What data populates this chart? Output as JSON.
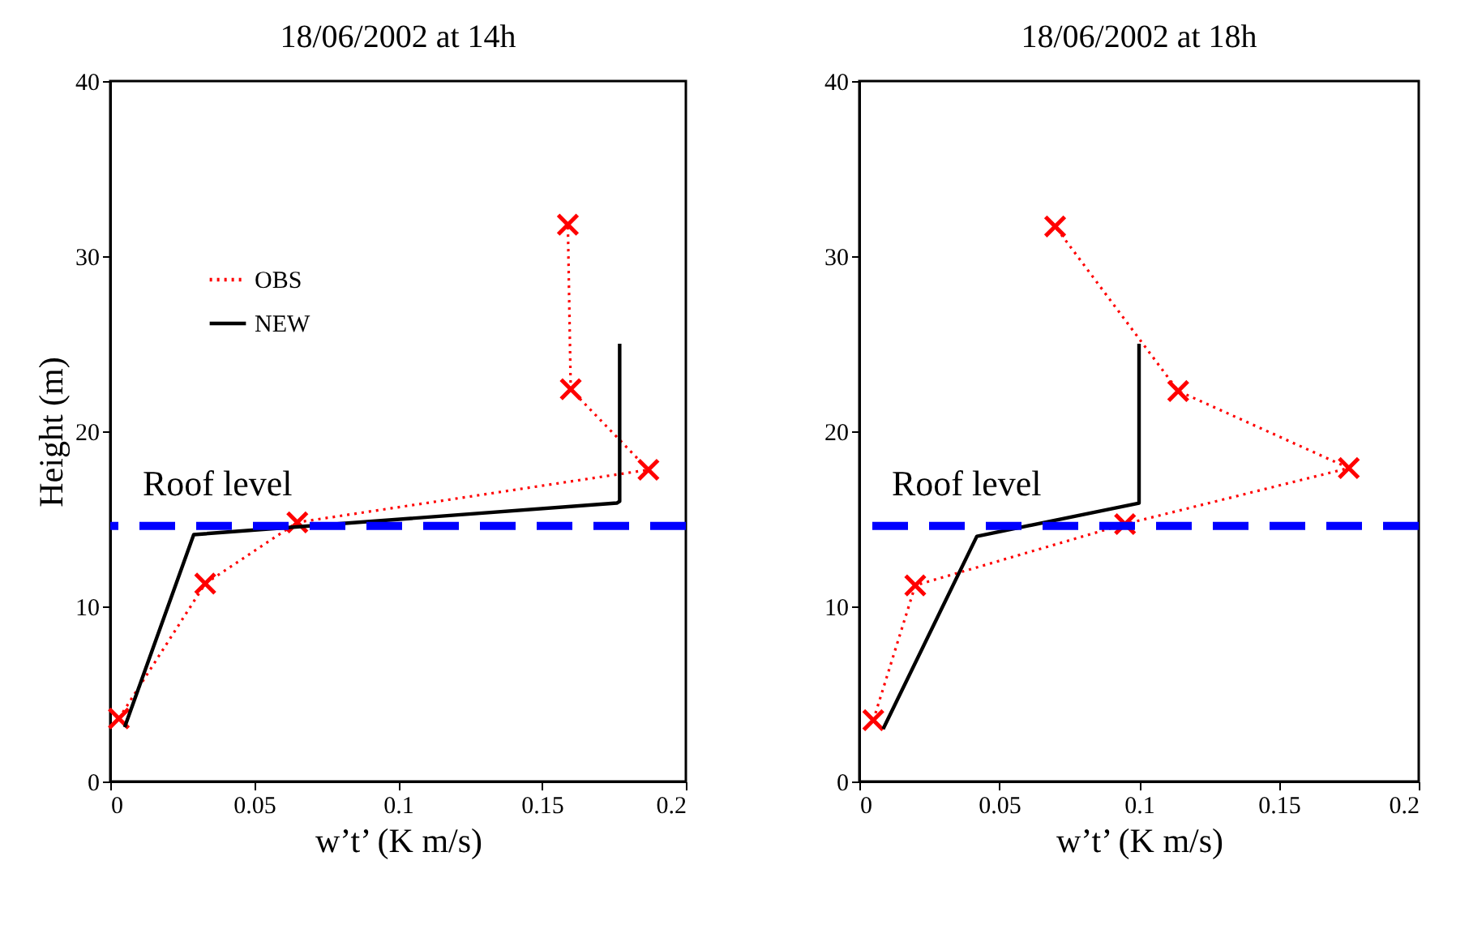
{
  "chart_data": [
    {
      "type": "line",
      "title": "18/06/2002 at 14h",
      "xlabel": "w’t’ (K m/s)",
      "ylabel": "Height (m)",
      "xlim": [
        0,
        0.2
      ],
      "xticks": [
        0,
        0.05,
        0.1,
        0.15,
        0.2
      ],
      "ylim": [
        0,
        40
      ],
      "yticks": [
        0,
        10,
        20,
        30,
        40
      ],
      "grid": false,
      "legend": "top left",
      "series": [
        {
          "name": "OBS",
          "color": "#ff0000",
          "marker": "cross",
          "line_style": "dotted",
          "x": [
            0.003,
            0.033,
            0.065,
            0.187,
            0.16,
            0.159
          ],
          "values": [
            3.6,
            11.3,
            14.8,
            17.8,
            22.4,
            31.8
          ]
        },
        {
          "name": "NEW",
          "color": "#000000",
          "marker": "none",
          "line_style": "solid",
          "x": [
            0.005,
            0.029,
            0.176,
            0.177,
            0.177
          ],
          "values": [
            3.1,
            14.1,
            15.9,
            16.0,
            25.0
          ]
        }
      ],
      "ref_lines": [
        {
          "axis": "y",
          "value": 14.6,
          "label": "Roof level",
          "color": "#0000ff",
          "line_style": "dashed"
        }
      ]
    },
    {
      "type": "line",
      "title": "18/06/2002 at 18h",
      "xlabel": "w’t’ (K m/s)",
      "xlim": [
        0,
        0.2
      ],
      "xticks": [
        0,
        0.05,
        0.1,
        0.15,
        0.2
      ],
      "ylim": [
        0,
        40
      ],
      "yticks": [
        0,
        10,
        20,
        30,
        40
      ],
      "grid": false,
      "series": [
        {
          "color": "#ff0000",
          "marker": "cross",
          "line_style": "dotted",
          "x": [
            0.005,
            0.02,
            0.095,
            0.175,
            0.114,
            0.07
          ],
          "values": [
            3.5,
            11.2,
            14.7,
            17.9,
            22.3,
            31.7
          ]
        },
        {
          "color": "#000000",
          "marker": "none",
          "line_style": "solid",
          "x": [
            0.0085,
            0.042,
            0.1,
            0.1
          ],
          "values": [
            3.0,
            14.0,
            15.9,
            25.0
          ]
        }
      ],
      "ref_lines": [
        {
          "axis": "y",
          "value": 14.6,
          "label": "Roof level",
          "color": "#0000ff",
          "line_style": "dashed"
        }
      ]
    }
  ]
}
